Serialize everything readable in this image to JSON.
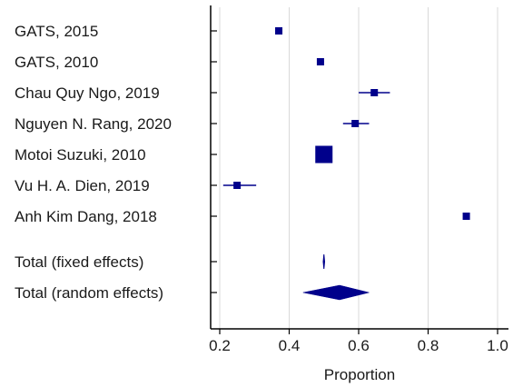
{
  "chart_data": {
    "type": "forest",
    "xlabel": "Proportion",
    "xlim": [
      0.18,
      1.02
    ],
    "x_ticks": [
      0.2,
      0.4,
      0.6,
      0.8,
      1.0
    ],
    "x_tick_labels": [
      "0.2",
      "0.4",
      "0.6",
      "0.8",
      "1.0"
    ],
    "grid": "vertical",
    "colors": {
      "marker": "#00008b",
      "axis": "#000000",
      "grid": "#d9d9d9"
    },
    "studies": [
      {
        "label": "GATS, 2015",
        "estimate": 0.37,
        "ci": [
          0.36,
          0.38
        ],
        "weight": "small"
      },
      {
        "label": "GATS, 2010",
        "estimate": 0.49,
        "ci": [
          0.48,
          0.5
        ],
        "weight": "small"
      },
      {
        "label": "Chau Quy Ngo, 2019",
        "estimate": 0.645,
        "ci": [
          0.6,
          0.69
        ],
        "weight": "small"
      },
      {
        "label": "Nguyen N. Rang, 2020",
        "estimate": 0.59,
        "ci": [
          0.555,
          0.63
        ],
        "weight": "small"
      },
      {
        "label": "Motoi Suzuki, 2010",
        "estimate": 0.5,
        "ci": [
          0.48,
          0.52
        ],
        "weight": "large"
      },
      {
        "label": "Vu H. A. Dien, 2019",
        "estimate": 0.25,
        "ci": [
          0.21,
          0.305
        ],
        "weight": "small"
      },
      {
        "label": "Anh Kim Dang, 2018",
        "estimate": 0.91,
        "ci": [
          0.905,
          0.915
        ],
        "weight": "small"
      }
    ],
    "pooled": [
      {
        "label": "Total (fixed effects)",
        "estimate": 0.5,
        "ci": [
          0.498,
          0.502
        ]
      },
      {
        "label": "Total (random effects)",
        "estimate": 0.545,
        "ci": [
          0.44,
          0.63
        ]
      }
    ]
  }
}
